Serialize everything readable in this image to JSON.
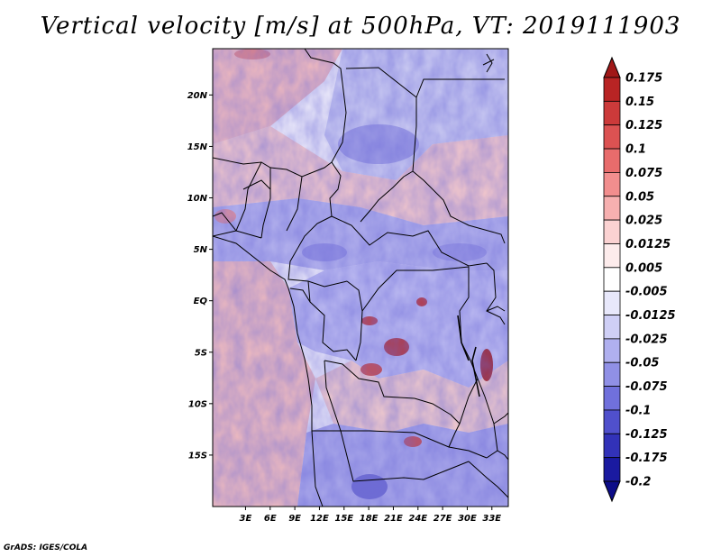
{
  "title": "Vertical velocity [m/s] at 500hPa, VT: 2019111903",
  "credit": "GrADS: IGES/COLA",
  "map": {
    "lon_range": [
      -1,
      35
    ],
    "lat_range": [
      -20,
      24.5
    ],
    "lat_ticks": [
      {
        "value": 20,
        "label": "20N"
      },
      {
        "value": 15,
        "label": "15N"
      },
      {
        "value": 10,
        "label": "10N"
      },
      {
        "value": 5,
        "label": "5N"
      },
      {
        "value": 0,
        "label": "EQ"
      },
      {
        "value": -5,
        "label": "5S"
      },
      {
        "value": -10,
        "label": "10S"
      },
      {
        "value": -15,
        "label": "15S"
      }
    ],
    "lon_ticks": [
      {
        "value": 3,
        "label": "3E"
      },
      {
        "value": 6,
        "label": "6E"
      },
      {
        "value": 9,
        "label": "9E"
      },
      {
        "value": 12,
        "label": "12E"
      },
      {
        "value": 15,
        "label": "15E"
      },
      {
        "value": 18,
        "label": "18E"
      },
      {
        "value": 21,
        "label": "21E"
      },
      {
        "value": 24,
        "label": "24E"
      },
      {
        "value": 27,
        "label": "27E"
      },
      {
        "value": 30,
        "label": "30E"
      },
      {
        "value": 33,
        "label": "33E"
      }
    ]
  },
  "colorbar": {
    "levels": [
      "0.175",
      "0.15",
      "0.125",
      "0.1",
      "0.075",
      "0.05",
      "0.025",
      "0.0125",
      "0.005",
      "-0.005",
      "-0.0125",
      "-0.025",
      "-0.05",
      "-0.075",
      "-0.1",
      "-0.125",
      "-0.175",
      "-0.2"
    ],
    "colors": [
      "#a01818",
      "#b82424",
      "#cc3a3a",
      "#dc5252",
      "#e86c6c",
      "#f28e8e",
      "#f7b0b0",
      "#fbd2d2",
      "#fdecec",
      "#ffffff",
      "#e8e8fb",
      "#cfcff6",
      "#b0b0ef",
      "#9090e6",
      "#7070dc",
      "#5050cc",
      "#3232b8",
      "#1a1aa0",
      "#0c0c88"
    ]
  },
  "colors": {
    "up_max": "#a01818",
    "down_max": "#0c0c88",
    "neutral": "#ffffff"
  }
}
